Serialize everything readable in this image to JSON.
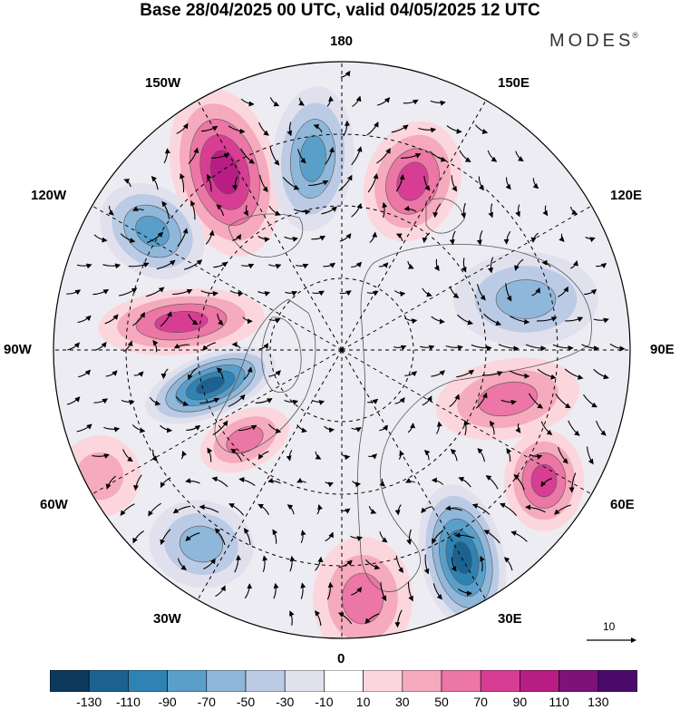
{
  "title": "Base 28/04/2025 00 UTC, valid 04/05/2025 12 UTC",
  "brand": "MODES",
  "brand_mark": "®",
  "longitude_labels": {
    "lon_180": "180",
    "lon_150w": "150W",
    "lon_150e": "150E",
    "lon_120w": "120W",
    "lon_120e": "120E",
    "lon_90w": "90W",
    "lon_90e": "90E",
    "lon_60w": "60W",
    "lon_60e": "60E",
    "lon_30w": "30W",
    "lon_30e": "30E",
    "lon_0": "0"
  },
  "vector_scale_label": "10",
  "colorbar": {
    "labels": [
      "-130",
      "-110",
      "-90",
      "-70",
      "-50",
      "-30",
      "-10",
      "10",
      "30",
      "50",
      "70",
      "90",
      "110",
      "130"
    ],
    "colors": [
      "#0d3a5c",
      "#1c6290",
      "#2f83b4",
      "#5a9fc9",
      "#8fb7da",
      "#bccbe5",
      "#e1e1ee",
      "#ffffff",
      "#fbd7dd",
      "#f5aabd",
      "#ec76a5",
      "#d73e93",
      "#b81d84",
      "#7d1279",
      "#4a0b6b"
    ]
  },
  "anomaly_centers": [
    {
      "name": "positive-anomaly-150w",
      "value": 90
    },
    {
      "name": "negative-anomaly-170w",
      "value": -70
    },
    {
      "name": "positive-anomaly-160e",
      "value": 70
    },
    {
      "name": "negative-anomaly-120w",
      "value": -70
    },
    {
      "name": "positive-anomaly-95w",
      "value": 70
    },
    {
      "name": "negative-anomaly-80w",
      "value": -110
    },
    {
      "name": "positive-anomaly-70w",
      "value": 50
    },
    {
      "name": "negative-anomaly-40w",
      "value": -50
    },
    {
      "name": "positive-anomaly-5e",
      "value": 50
    },
    {
      "name": "negative-anomaly-35e",
      "value": -110
    },
    {
      "name": "positive-anomaly-70e",
      "value": 70
    },
    {
      "name": "positive-anomaly-85e",
      "value": 50
    },
    {
      "name": "negative-anomaly-105e",
      "value": -50
    },
    {
      "name": "positive-anomaly-55w",
      "value": 30
    }
  ]
}
